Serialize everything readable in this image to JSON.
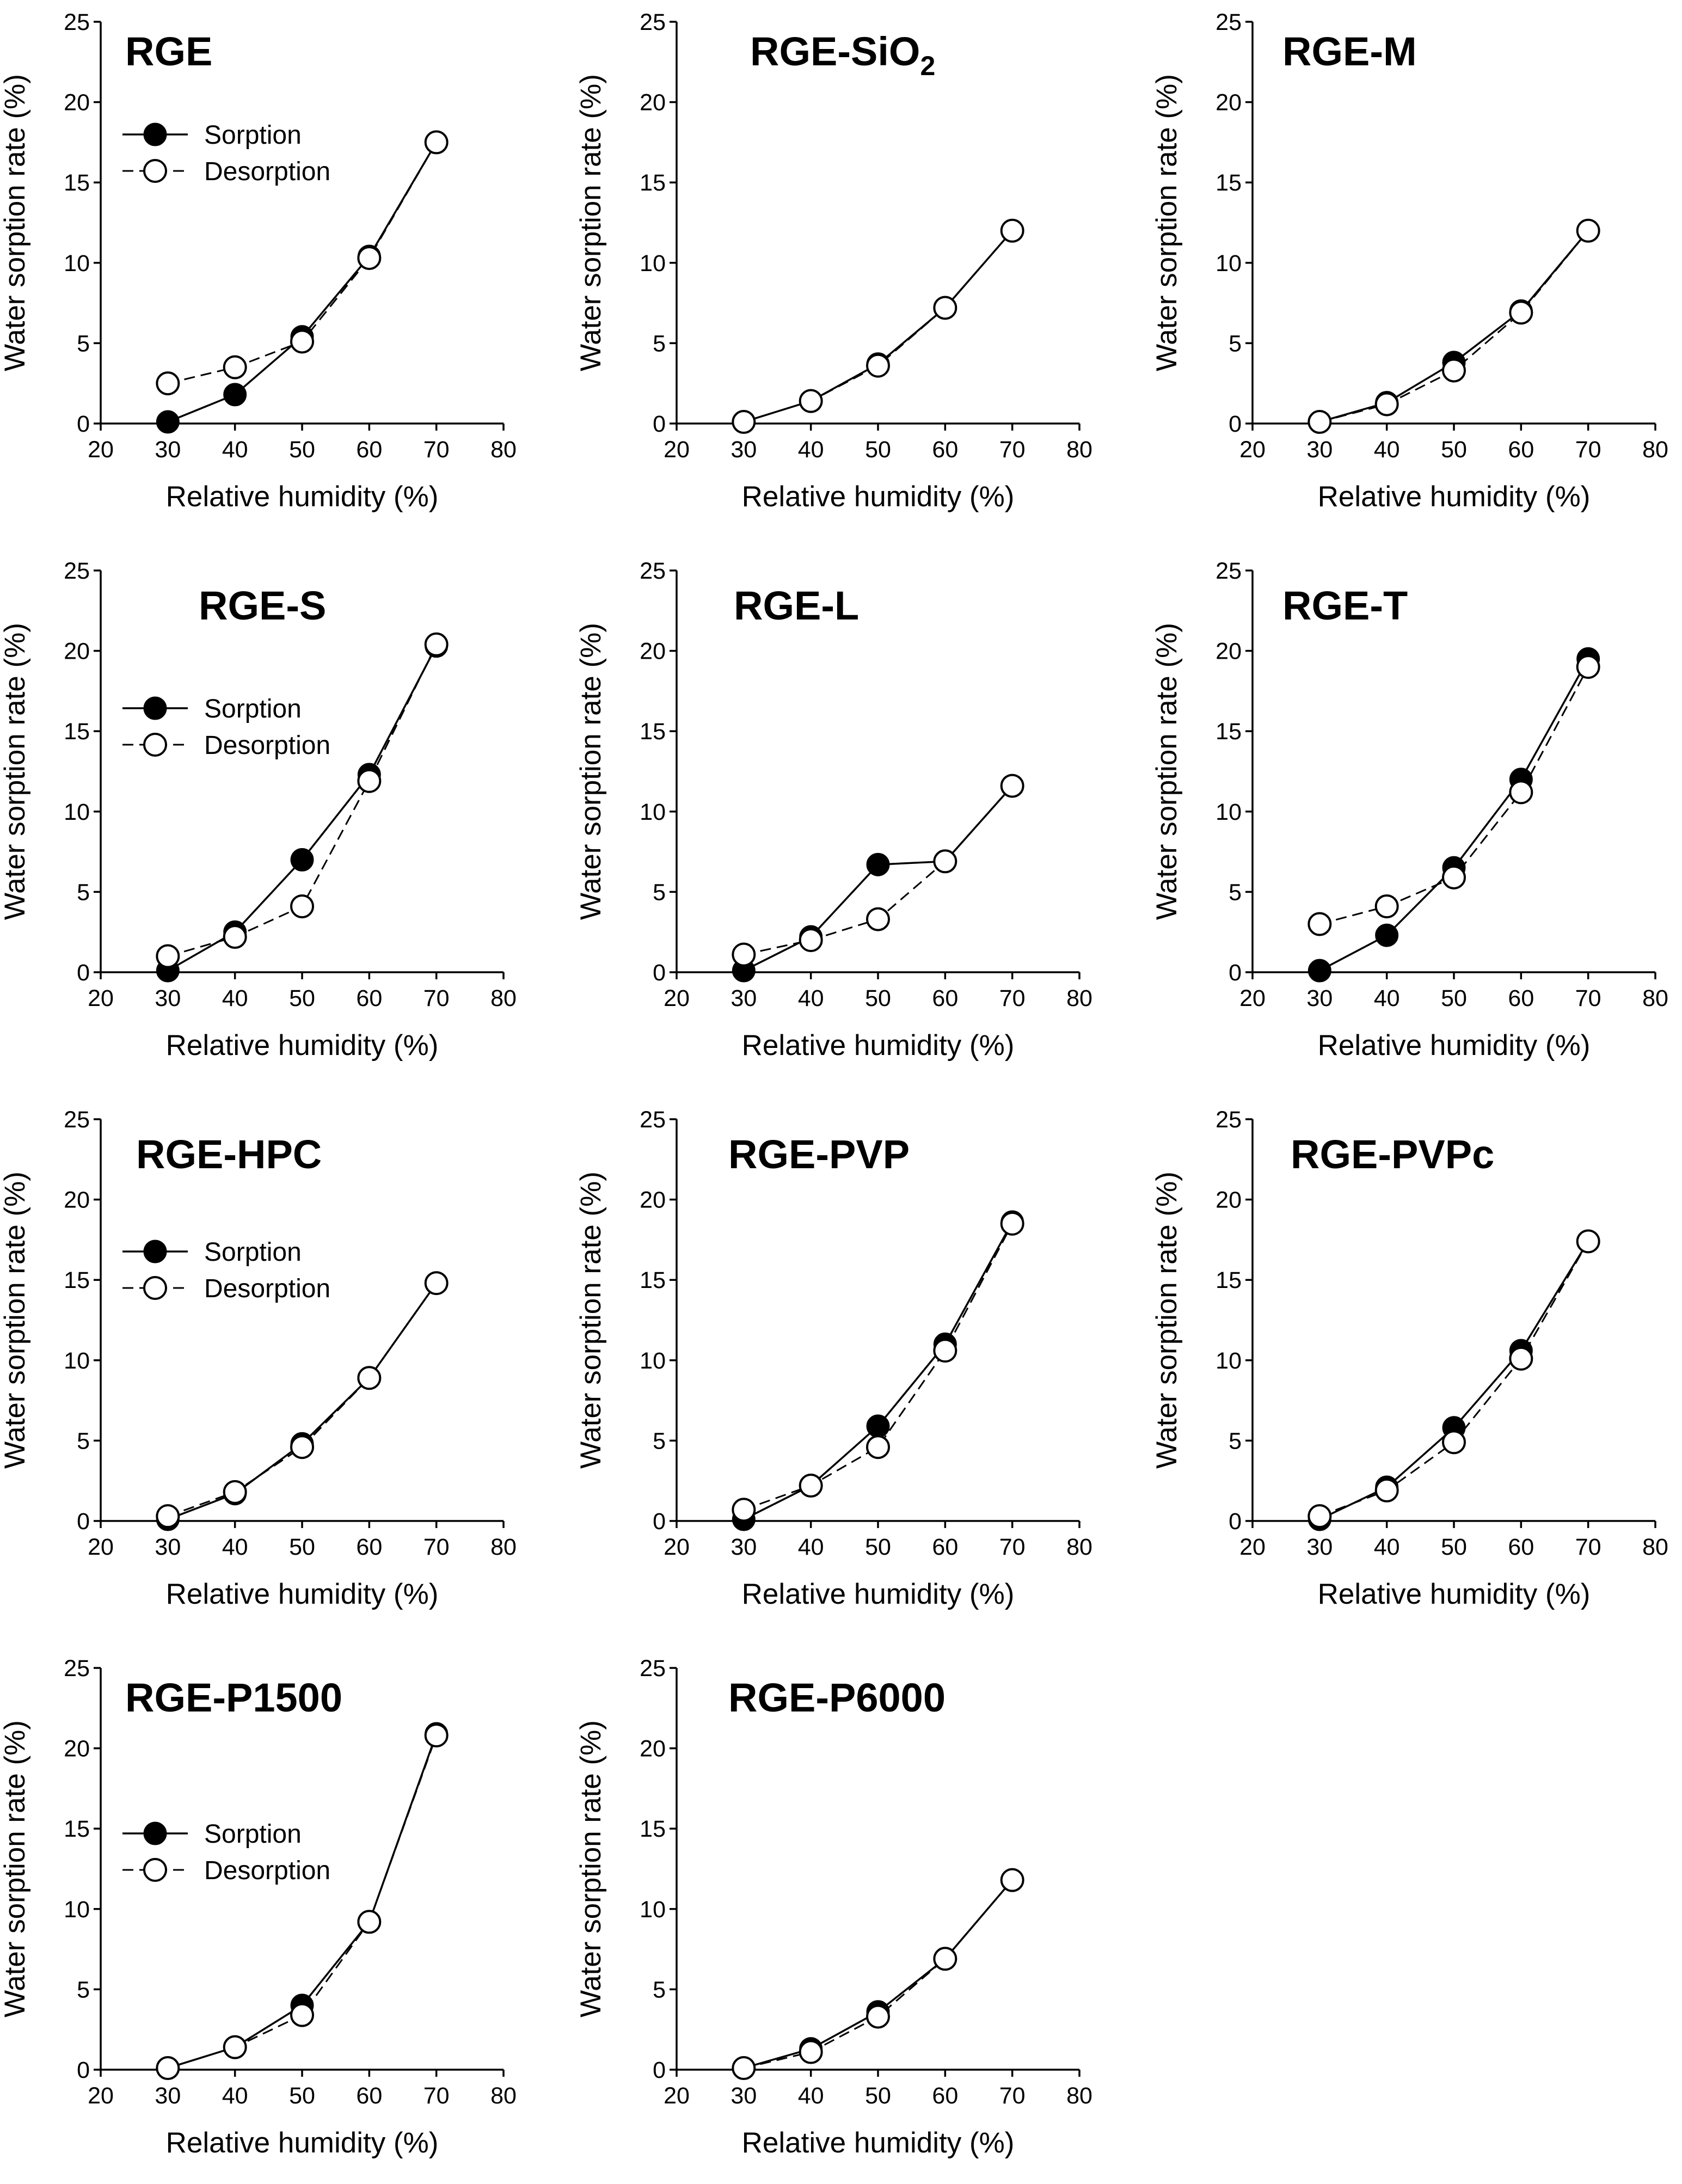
{
  "figure": {
    "panels_count": 11
  },
  "chart_data": [
    {
      "type": "line",
      "title": "RGE",
      "xlabel": "Relative humidity (%)",
      "ylabel": "Water sorption rate (%)",
      "xlim": [
        20,
        80
      ],
      "ylim": [
        0,
        25
      ],
      "xticks": [
        20,
        30,
        40,
        50,
        60,
        70,
        80
      ],
      "yticks": [
        0,
        5,
        10,
        15,
        20,
        25
      ],
      "legend": true,
      "legend_position": "top-left",
      "x": [
        30,
        40,
        50,
        60,
        70
      ],
      "series": [
        {
          "name": "Sorption",
          "values": [
            0.1,
            1.8,
            5.4,
            10.4,
            17.5
          ]
        },
        {
          "name": "Desorption",
          "values": [
            2.5,
            3.5,
            5.1,
            10.3,
            17.5
          ]
        }
      ]
    },
    {
      "type": "line",
      "title": "RGE-SiO2",
      "title_base": "RGE-SiO",
      "title_subscript": "2",
      "xlabel": "Relative humidity (%)",
      "ylabel": "Water sorption rate (%)",
      "xlim": [
        20,
        80
      ],
      "ylim": [
        0,
        25
      ],
      "xticks": [
        20,
        30,
        40,
        50,
        60,
        70,
        80
      ],
      "yticks": [
        0,
        5,
        10,
        15,
        20,
        25
      ],
      "legend": false,
      "x": [
        30,
        40,
        50,
        60,
        70
      ],
      "series": [
        {
          "name": "Sorption",
          "values": [
            0.1,
            1.4,
            3.7,
            7.2,
            12.0
          ]
        },
        {
          "name": "Desorption",
          "values": [
            0.1,
            1.4,
            3.6,
            7.2,
            12.0
          ]
        }
      ]
    },
    {
      "type": "line",
      "title": "RGE-M",
      "xlabel": "Relative humidity (%)",
      "ylabel": "Water sorption rate (%)",
      "xlim": [
        20,
        80
      ],
      "ylim": [
        0,
        25
      ],
      "xticks": [
        20,
        30,
        40,
        50,
        60,
        70,
        80
      ],
      "yticks": [
        0,
        5,
        10,
        15,
        20,
        25
      ],
      "legend": false,
      "x": [
        30,
        40,
        50,
        60,
        70
      ],
      "series": [
        {
          "name": "Sorption",
          "values": [
            0.1,
            1.3,
            3.8,
            7.0,
            12.0
          ]
        },
        {
          "name": "Desorption",
          "values": [
            0.1,
            1.2,
            3.3,
            6.9,
            12.0
          ]
        }
      ]
    },
    {
      "type": "line",
      "title": "RGE-S",
      "xlabel": "Relative humidity (%)",
      "ylabel": "Water sorption rate (%)",
      "xlim": [
        20,
        80
      ],
      "ylim": [
        0,
        25
      ],
      "xticks": [
        20,
        30,
        40,
        50,
        60,
        70,
        80
      ],
      "yticks": [
        0,
        5,
        10,
        15,
        20,
        25
      ],
      "legend": true,
      "legend_position": "upper-left",
      "x": [
        30,
        40,
        50,
        60,
        70
      ],
      "series": [
        {
          "name": "Sorption",
          "values": [
            0.1,
            2.5,
            7.0,
            12.3,
            20.3
          ]
        },
        {
          "name": "Desorption",
          "values": [
            1.0,
            2.2,
            4.1,
            11.9,
            20.4
          ]
        }
      ]
    },
    {
      "type": "line",
      "title": "RGE-L",
      "xlabel": "Relative humidity (%)",
      "ylabel": "Water sorption rate (%)",
      "xlim": [
        20,
        80
      ],
      "ylim": [
        0,
        25
      ],
      "xticks": [
        20,
        30,
        40,
        50,
        60,
        70,
        80
      ],
      "yticks": [
        0,
        5,
        10,
        15,
        20,
        25
      ],
      "legend": false,
      "x": [
        30,
        40,
        50,
        60,
        70
      ],
      "series": [
        {
          "name": "Sorption",
          "values": [
            0.1,
            2.2,
            6.7,
            6.9,
            11.6
          ]
        },
        {
          "name": "Desorption",
          "values": [
            1.1,
            2.0,
            3.3,
            6.9,
            11.6
          ]
        }
      ]
    },
    {
      "type": "line",
      "title": "RGE-T",
      "xlabel": "Relative humidity (%)",
      "ylabel": "Water sorption rate (%)",
      "xlim": [
        20,
        80
      ],
      "ylim": [
        0,
        25
      ],
      "xticks": [
        20,
        30,
        40,
        50,
        60,
        70,
        80
      ],
      "yticks": [
        0,
        5,
        10,
        15,
        20,
        25
      ],
      "legend": false,
      "x": [
        30,
        40,
        50,
        60,
        70
      ],
      "series": [
        {
          "name": "Sorption",
          "values": [
            0.1,
            2.3,
            6.5,
            12.0,
            19.5
          ]
        },
        {
          "name": "Desorption",
          "values": [
            3.0,
            4.1,
            5.9,
            11.2,
            19.0
          ]
        }
      ]
    },
    {
      "type": "line",
      "title": "RGE-HPC",
      "xlabel": "Relative humidity (%)",
      "ylabel": "Water sorption rate (%)",
      "xlim": [
        20,
        80
      ],
      "ylim": [
        0,
        25
      ],
      "xticks": [
        20,
        30,
        40,
        50,
        60,
        70,
        80
      ],
      "yticks": [
        0,
        5,
        10,
        15,
        20,
        25
      ],
      "legend": true,
      "legend_position": "upper-left",
      "x": [
        30,
        40,
        50,
        60,
        70
      ],
      "series": [
        {
          "name": "Sorption",
          "values": [
            0.1,
            1.7,
            4.8,
            8.9,
            14.8
          ]
        },
        {
          "name": "Desorption",
          "values": [
            0.3,
            1.8,
            4.6,
            8.9,
            14.8
          ]
        }
      ]
    },
    {
      "type": "line",
      "title": "RGE-PVP",
      "xlabel": "Relative humidity (%)",
      "ylabel": "Water sorption rate (%)",
      "xlim": [
        20,
        80
      ],
      "ylim": [
        0,
        25
      ],
      "xticks": [
        20,
        30,
        40,
        50,
        60,
        70,
        80
      ],
      "yticks": [
        0,
        5,
        10,
        15,
        20,
        25
      ],
      "legend": false,
      "x": [
        30,
        40,
        50,
        60,
        70
      ],
      "series": [
        {
          "name": "Sorption",
          "values": [
            0.1,
            2.2,
            5.9,
            11.0,
            18.6
          ]
        },
        {
          "name": "Desorption",
          "values": [
            0.7,
            2.2,
            4.6,
            10.6,
            18.5
          ]
        }
      ]
    },
    {
      "type": "line",
      "title": "RGE-PVPc",
      "xlabel": "Relative humidity (%)",
      "ylabel": "Water sorption rate (%)",
      "xlim": [
        20,
        80
      ],
      "ylim": [
        0,
        25
      ],
      "xticks": [
        20,
        30,
        40,
        50,
        60,
        70,
        80
      ],
      "yticks": [
        0,
        5,
        10,
        15,
        20,
        25
      ],
      "legend": false,
      "x": [
        30,
        40,
        50,
        60,
        70
      ],
      "series": [
        {
          "name": "Sorption",
          "values": [
            0.1,
            2.1,
            5.8,
            10.6,
            17.4
          ]
        },
        {
          "name": "Desorption",
          "values": [
            0.3,
            1.9,
            4.9,
            10.1,
            17.4
          ]
        }
      ]
    },
    {
      "type": "line",
      "title": "RGE-P1500",
      "xlabel": "Relative humidity (%)",
      "ylabel": "Water sorption rate (%)",
      "xlim": [
        20,
        80
      ],
      "ylim": [
        0,
        25
      ],
      "xticks": [
        20,
        30,
        40,
        50,
        60,
        70,
        80
      ],
      "yticks": [
        0,
        5,
        10,
        15,
        20,
        25
      ],
      "legend": true,
      "legend_position": "middle-left",
      "x": [
        30,
        40,
        50,
        60,
        70
      ],
      "series": [
        {
          "name": "Sorption",
          "values": [
            0.1,
            1.4,
            4.0,
            9.2,
            20.9
          ]
        },
        {
          "name": "Desorption",
          "values": [
            0.1,
            1.4,
            3.4,
            9.2,
            20.8
          ]
        }
      ]
    },
    {
      "type": "line",
      "title": "RGE-P6000",
      "xlabel": "Relative humidity (%)",
      "ylabel": "Water sorption rate (%)",
      "xlim": [
        20,
        80
      ],
      "ylim": [
        0,
        25
      ],
      "xticks": [
        20,
        30,
        40,
        50,
        60,
        70,
        80
      ],
      "yticks": [
        0,
        5,
        10,
        15,
        20,
        25
      ],
      "legend": false,
      "x": [
        30,
        40,
        50,
        60,
        70
      ],
      "series": [
        {
          "name": "Sorption",
          "values": [
            0.1,
            1.3,
            3.6,
            6.9,
            11.8
          ]
        },
        {
          "name": "Desorption",
          "values": [
            0.1,
            1.1,
            3.3,
            6.9,
            11.8
          ]
        }
      ]
    }
  ]
}
